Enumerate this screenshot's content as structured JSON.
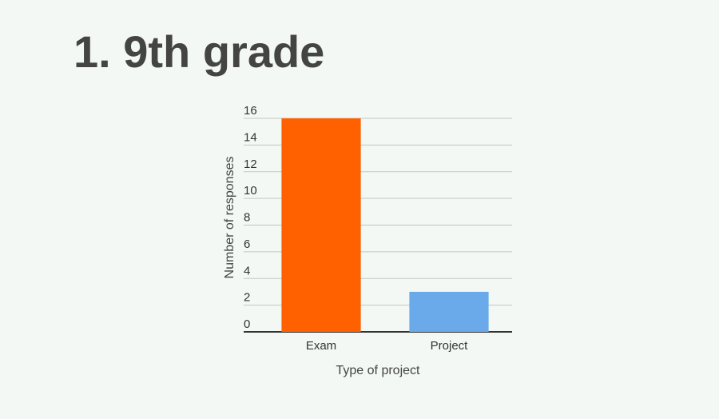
{
  "chart_data": {
    "type": "bar",
    "title": "1. 9th grade",
    "x_label": "Type of project",
    "y_label": "Number of responses",
    "categories": [
      "Exam",
      "Project"
    ],
    "values": [
      16,
      3
    ],
    "colors": [
      "#ff6000",
      "#6aaaeb"
    ],
    "ylim": [
      0,
      16
    ],
    "yticks": [
      0,
      2,
      4,
      6,
      8,
      10,
      12,
      14,
      16
    ],
    "grid": true
  }
}
